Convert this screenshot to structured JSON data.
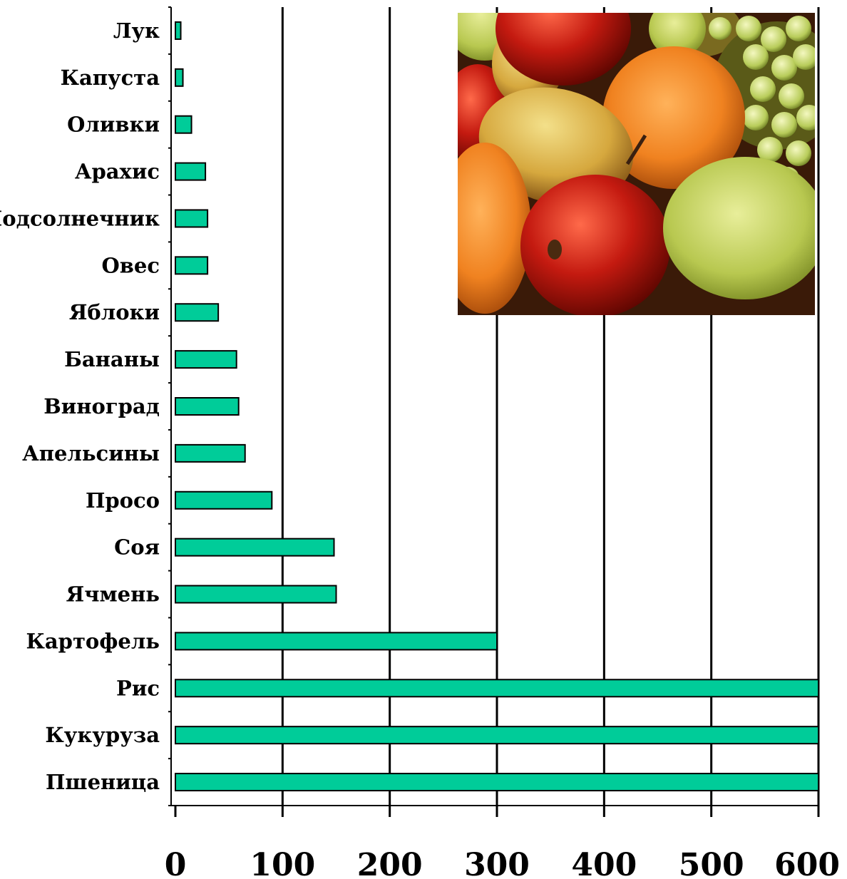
{
  "chart_data": {
    "type": "bar",
    "orientation": "horizontal",
    "title": "",
    "xlabel": "",
    "ylabel": "",
    "categories": [
      "Лук",
      "Капуста",
      "Оливки",
      "Арахис",
      "Подсолнечник",
      "Овес",
      "Яблоки",
      "Бананы",
      "Виноград",
      "Апельсины",
      "Просо",
      "Соя",
      "Ячмень",
      "Картофель",
      "Рис",
      "Кукуруза",
      "Пшеница"
    ],
    "values": [
      5,
      7,
      15,
      28,
      30,
      30,
      40,
      57,
      59,
      65,
      90,
      148,
      150,
      300,
      600,
      600,
      600
    ],
    "xlim": [
      0,
      600
    ],
    "xticks": [
      "0",
      "100",
      "200",
      "300",
      "400",
      "500",
      "600"
    ],
    "grid": "vertical",
    "legend": "none",
    "colors": {
      "bar": "#00CC99",
      "outline": "#000000",
      "grid": "#000000"
    }
  },
  "inset_image": {
    "description_icon": "fruit-photo"
  }
}
